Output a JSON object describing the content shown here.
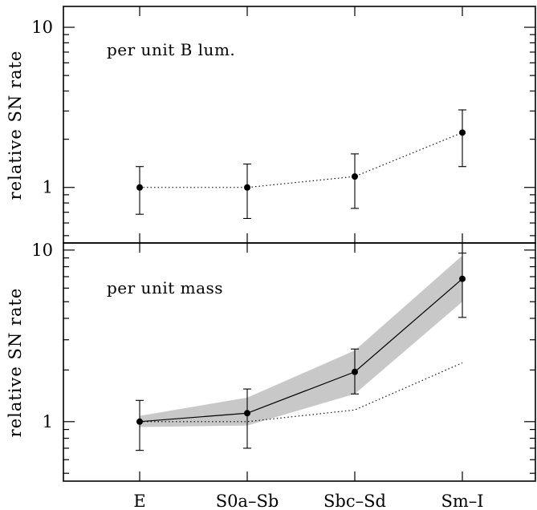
{
  "chart_data": [
    {
      "type": "scatter",
      "panel": "top",
      "label": "per unit B lum.",
      "ylabel": "relative SN rate",
      "yscale": "log",
      "ylim": [
        0.45,
        13.5
      ],
      "yticks": [
        1,
        10
      ],
      "yticklabels": [
        "1",
        "10"
      ],
      "categories": [
        "E",
        "S0a–Sb",
        "Sbc–Sd",
        "Sm–I"
      ],
      "series": [
        {
          "style": "points-dotted",
          "values": [
            1.0,
            1.0,
            1.17,
            2.2
          ],
          "err_low": [
            0.68,
            0.64,
            0.74,
            1.35
          ],
          "err_high": [
            1.35,
            1.4,
            1.62,
            3.05
          ]
        }
      ]
    },
    {
      "type": "line",
      "panel": "bottom",
      "label": "per unit mass",
      "ylabel": "relative SN rate",
      "xlabel": "",
      "yscale": "log",
      "ylim": [
        0.45,
        11
      ],
      "yticks": [
        1,
        10
      ],
      "yticklabels": [
        "1",
        "10"
      ],
      "categories": [
        "E",
        "S0a–Sb",
        "Sbc–Sd",
        "Sm–I"
      ],
      "series": [
        {
          "style": "points-solid",
          "values": [
            1.0,
            1.12,
            1.95,
            6.8
          ],
          "err_low": [
            0.68,
            0.7,
            1.45,
            4.05
          ],
          "err_high": [
            1.33,
            1.55,
            2.65,
            9.6
          ]
        },
        {
          "style": "shaded-band",
          "band_low": [
            0.93,
            0.95,
            1.45,
            5.0
          ],
          "band_high": [
            1.08,
            1.38,
            2.6,
            9.3
          ]
        },
        {
          "style": "dotted",
          "values": [
            1.0,
            1.0,
            1.17,
            2.2
          ]
        }
      ]
    }
  ]
}
